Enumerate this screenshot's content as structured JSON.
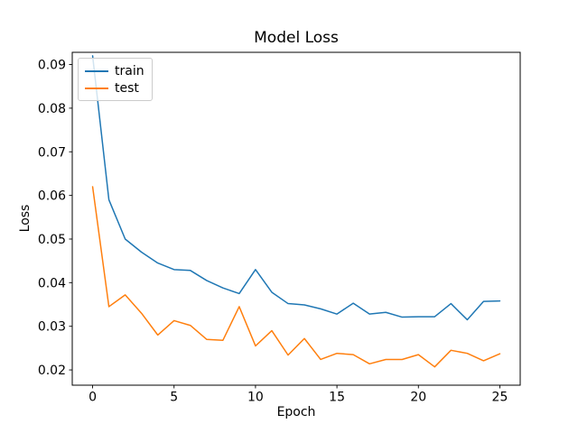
{
  "chart_data": {
    "type": "line",
    "title": "Model Loss",
    "xlabel": "Epoch",
    "ylabel": "Loss",
    "x": [
      0,
      1,
      2,
      3,
      4,
      5,
      6,
      7,
      8,
      9,
      10,
      11,
      12,
      13,
      14,
      15,
      16,
      17,
      18,
      19,
      20,
      21,
      22,
      23,
      24,
      25
    ],
    "series": [
      {
        "name": "train",
        "color": "#1f77b4",
        "values": [
          0.092,
          0.059,
          0.05,
          0.047,
          0.0445,
          0.043,
          0.0428,
          0.0405,
          0.0388,
          0.0375,
          0.043,
          0.0378,
          0.0352,
          0.0349,
          0.034,
          0.0328,
          0.0353,
          0.0328,
          0.0332,
          0.0321,
          0.0322,
          0.0322,
          0.0352,
          0.0315,
          0.0357,
          0.0358
        ]
      },
      {
        "name": "test",
        "color": "#ff7f0e",
        "values": [
          0.062,
          0.0345,
          0.0372,
          0.033,
          0.028,
          0.0313,
          0.0302,
          0.027,
          0.0268,
          0.0345,
          0.0255,
          0.029,
          0.0234,
          0.0272,
          0.0224,
          0.0238,
          0.0235,
          0.0214,
          0.0224,
          0.0224,
          0.0235,
          0.0207,
          0.0245,
          0.0238,
          0.0221,
          0.0237
        ]
      }
    ],
    "xlim": [
      -1.25,
      26.25
    ],
    "ylim": [
      0.0165,
      0.0928
    ],
    "xticks": [
      0,
      5,
      10,
      15,
      20,
      25
    ],
    "yticks": [
      0.02,
      0.03,
      0.04,
      0.05,
      0.06,
      0.07,
      0.08,
      0.09
    ],
    "ytick_decimals": 2,
    "legend_position": "upper left",
    "grid": false,
    "line_width": 1.5,
    "axes_color": "#000000"
  }
}
